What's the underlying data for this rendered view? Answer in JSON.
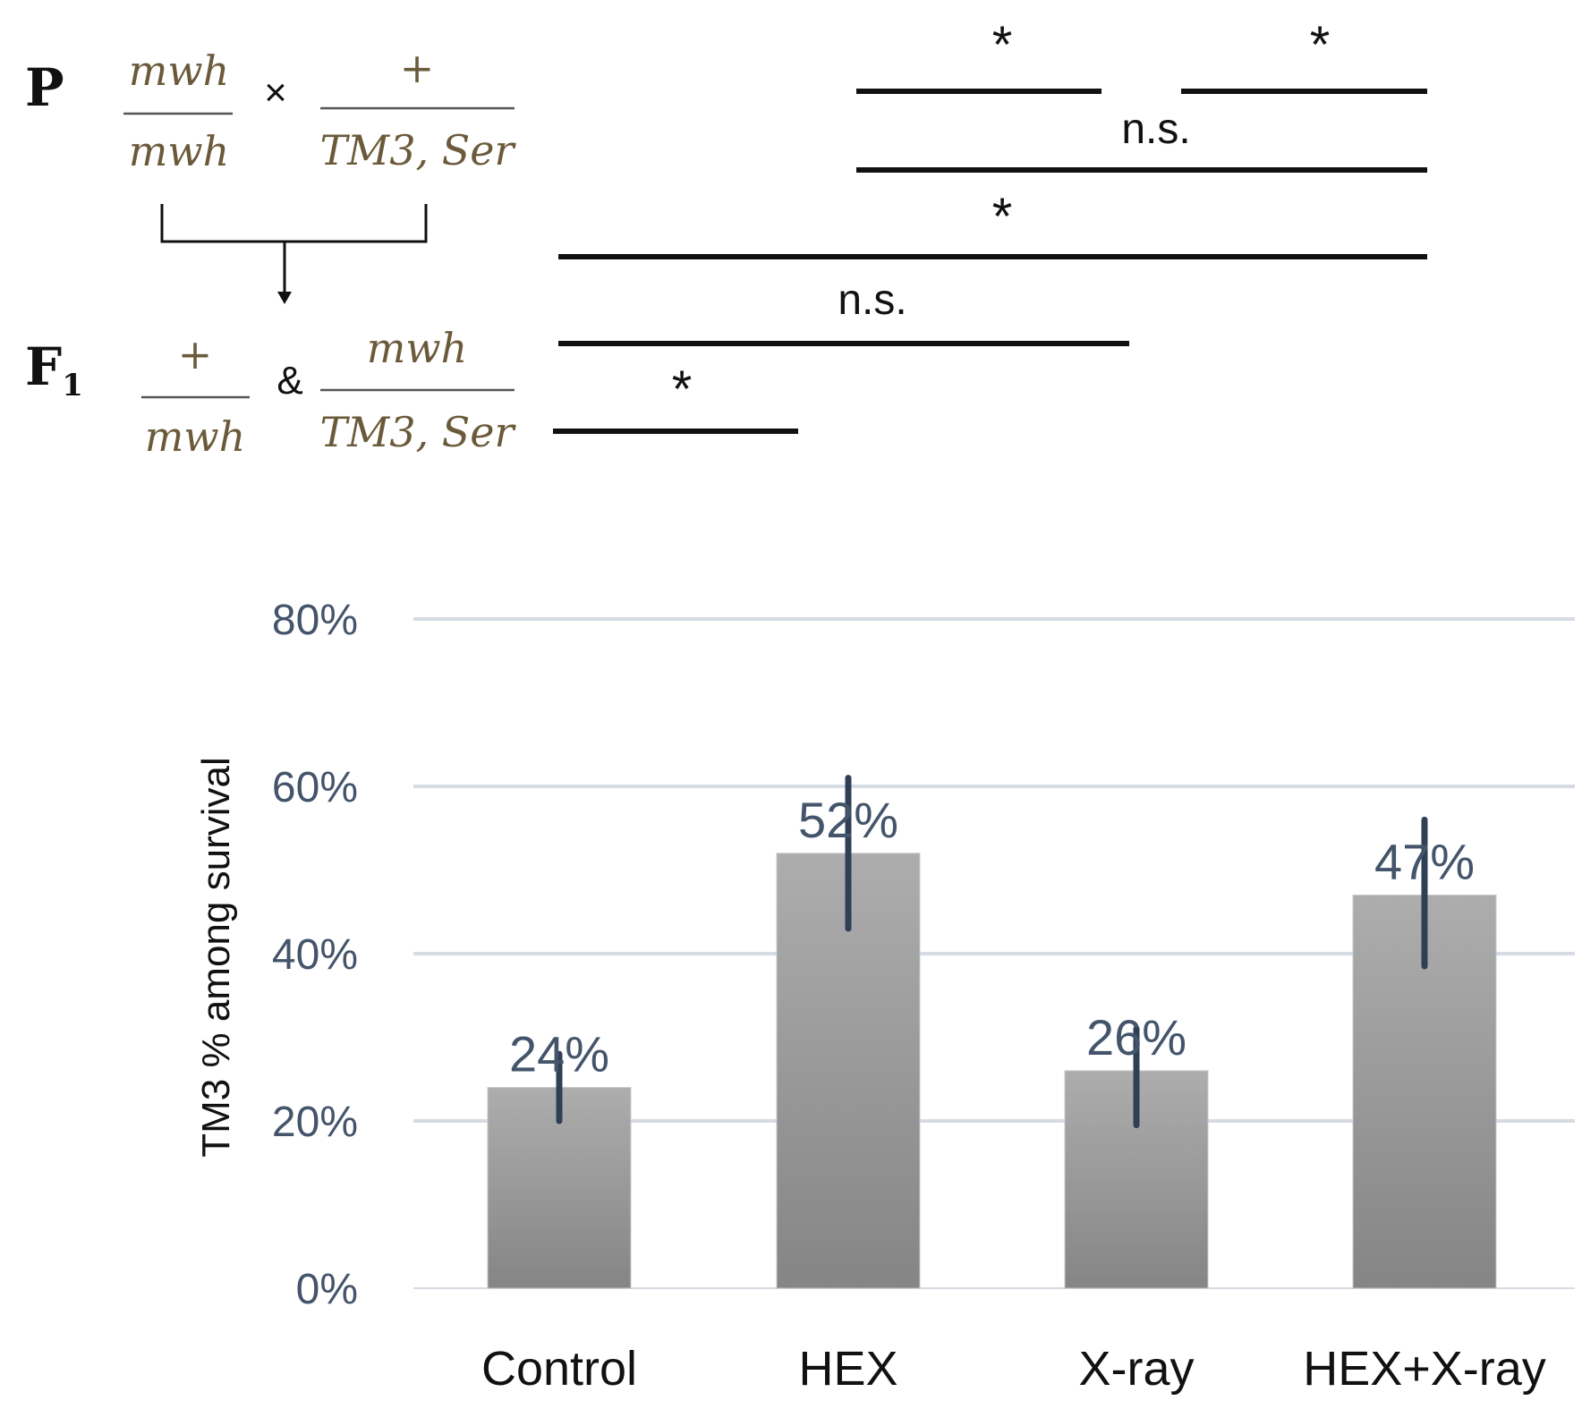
{
  "cross": {
    "p_label": "P",
    "p_left_num": "mwh",
    "p_left_den": "mwh",
    "p_times": "×",
    "p_right_num": "+",
    "p_right_den": "TM3, Ser",
    "f1_label": "F",
    "f1_sub": "1",
    "f1_left_num": "+",
    "f1_left_den": "mwh",
    "f1_amp": "&",
    "f1_right_num": "mwh",
    "f1_right_den": "TM3, Ser"
  },
  "significance": [
    {
      "from": "HEX",
      "to": "X-ray",
      "label": "*"
    },
    {
      "from": "X-ray",
      "to": "HEX+X-ray",
      "label": "*"
    },
    {
      "from": "HEX",
      "to": "HEX+X-ray",
      "label": "n.s."
    },
    {
      "from": "Control",
      "to": "HEX+X-ray",
      "label": "*"
    },
    {
      "from": "Control",
      "to": "X-ray",
      "label": "n.s."
    },
    {
      "from": "Control",
      "to": "HEX",
      "label": "*"
    }
  ],
  "chart_data": {
    "type": "bar",
    "title": "",
    "xlabel": "",
    "ylabel": "TM3 % among survival",
    "categories": [
      "Control",
      "HEX",
      "X-ray",
      "HEX+X-ray"
    ],
    "values": [
      24,
      52,
      26,
      47
    ],
    "value_labels": [
      "24%",
      "52%",
      "26%",
      "47%"
    ],
    "error_bars": [
      [
        20,
        28
      ],
      [
        43,
        61
      ],
      [
        19.5,
        31
      ],
      [
        38.5,
        56
      ]
    ],
    "ylim": [
      0,
      80
    ],
    "yticks": [
      0,
      20,
      40,
      60,
      80
    ],
    "ytick_labels": [
      "0%",
      "20%",
      "40%",
      "60%",
      "80%"
    ],
    "grid": true,
    "colors": {
      "bar_top": "#adadad",
      "bar_bottom": "#858585",
      "grid": "#d6dce4",
      "error": "#2f3f55",
      "text": "#44546a"
    }
  }
}
